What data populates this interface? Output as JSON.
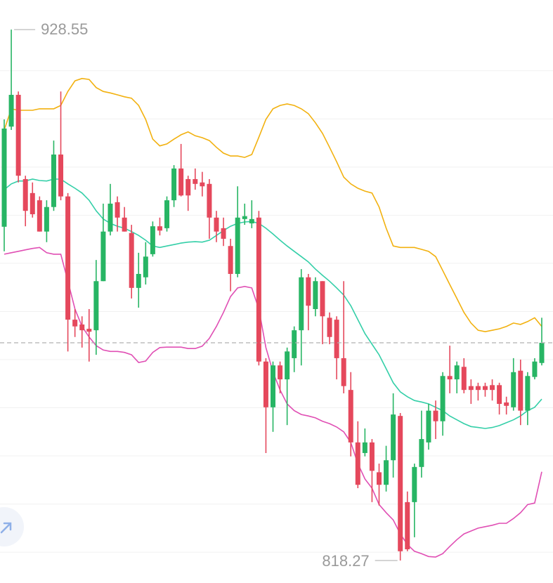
{
  "chart_data": {
    "type": "candlestick",
    "ylim": [
      813.6,
      934.7
    ],
    "yticks": [
      820,
      830,
      840,
      850,
      860,
      870,
      880,
      890,
      900,
      910,
      920
    ],
    "grid": true,
    "tick_labels": false,
    "price_line": true,
    "up_color": "#27b564",
    "down_color": "#e5485c",
    "high_label": "928.55",
    "low_label": "818.27",
    "open": [
      887.6,
      908.4,
      915.0,
      897.5,
      894.6,
      893.1,
      886.6,
      891.7,
      902.6,
      893.9,
      868.3,
      867.3,
      866.4,
      866.1,
      876.3,
      886.6,
      892.7,
      889.5,
      886.3,
      874.9,
      877.1,
      881.9,
      887.7,
      887.3,
      893.1,
      899.7,
      897.5,
      897.5,
      896.8,
      896.5,
      889.5,
      887.3,
      883.6,
      877.8,
      889.2,
      888.3,
      889.5,
      859.6,
      850.1,
      858.8,
      855.9,
      860.3,
      866.1,
      877.1,
      870.5,
      876.3,
      868.7,
      868.3,
      860.3,
      853.7,
      842.8,
      840.6,
      842.8,
      836.6,
      834.0,
      839.1,
      848.3,
      830.4,
      830.4,
      837.7,
      842.8,
      849.4,
      847.2,
      856.6,
      855.9,
      858.5,
      854.5,
      854.5,
      854.5,
      854.7,
      854.7,
      851.1,
      850.1,
      857.7,
      849.4,
      856.4,
      859.3
    ],
    "high": [
      909.9,
      928.55,
      915.7,
      898.2,
      896.8,
      893.9,
      893.1,
      905.5,
      915.7,
      894.6,
      870.5,
      869.0,
      870.5,
      880.7,
      892.4,
      896.5,
      893.9,
      891.7,
      888.0,
      882.2,
      884.4,
      888.7,
      889.5,
      893.9,
      900.4,
      904.8,
      898.2,
      899.7,
      899.0,
      897.5,
      890.9,
      889.5,
      885.1,
      896.0,
      892.4,
      893.1,
      890.9,
      860.3,
      859.6,
      859.6,
      862.5,
      866.9,
      878.8,
      877.8,
      877.1,
      876.3,
      869.8,
      869.0,
      876.3,
      857.4,
      847.2,
      845.7,
      843.5,
      838.4,
      842.1,
      853.0,
      848.9,
      832.6,
      838.4,
      849.4,
      850.8,
      851.5,
      857.4,
      862.9,
      859.6,
      860.3,
      855.9,
      855.2,
      855.2,
      855.9,
      855.2,
      852.3,
      860.3,
      860.0,
      857.4,
      860.3,
      868.7
    ],
    "low": [
      882.5,
      907.7,
      896.8,
      887.7,
      889.5,
      886.6,
      884.4,
      890.9,
      893.1,
      861.7,
      864.7,
      862.5,
      859.6,
      861.0,
      876.3,
      885.8,
      886.6,
      886.6,
      872.7,
      870.8,
      875.6,
      881.4,
      885.8,
      886.6,
      891.7,
      893.9,
      890.9,
      895.3,
      893.9,
      885.1,
      884.4,
      883.6,
      874.2,
      877.1,
      888.0,
      887.3,
      858.8,
      840.6,
      845.0,
      853.0,
      846.4,
      857.4,
      858.8,
      866.1,
      869.0,
      863.2,
      863.2,
      855.9,
      853.0,
      839.9,
      833.3,
      839.9,
      830.4,
      829.7,
      832.6,
      835.5,
      818.27,
      820.2,
      823.1,
      835.5,
      841.3,
      843.5,
      844.2,
      853.0,
      853.0,
      853.0,
      850.8,
      851.5,
      852.3,
      851.5,
      848.6,
      848.6,
      849.4,
      846.4,
      846.4,
      855.9,
      858.8
    ],
    "close": [
      908.0,
      915.0,
      898.2,
      890.9,
      890.2,
      886.6,
      891.7,
      902.6,
      893.9,
      868.3,
      866.9,
      866.1,
      865.8,
      876.3,
      886.6,
      892.4,
      889.5,
      886.6,
      874.9,
      877.8,
      881.4,
      887.7,
      886.8,
      893.1,
      899.7,
      894.1,
      894.1,
      896.5,
      896.0,
      889.5,
      886.6,
      885.1,
      877.8,
      889.5,
      889.8,
      889.2,
      859.6,
      850.1,
      858.8,
      855.9,
      861.7,
      866.1,
      877.1,
      871.2,
      876.3,
      869.0,
      864.7,
      860.3,
      854.5,
      842.8,
      834.0,
      842.8,
      836.9,
      834.0,
      839.1,
      848.6,
      820.2,
      820.6,
      837.7,
      843.5,
      849.4,
      847.2,
      856.6,
      855.9,
      858.8,
      853.7,
      853.7,
      853.7,
      853.7,
      853.7,
      850.8,
      850.4,
      857.4,
      849.4,
      856.6,
      859.6,
      863.5
    ],
    "bands": [
      {
        "color": "#f2b10f",
        "values": [
          907.7,
          912.1,
          911.8,
          911.8,
          911.8,
          912.1,
          912.1,
          912.1,
          912.8,
          915.7,
          917.9,
          918.4,
          918.2,
          916.5,
          915.7,
          915.4,
          915.0,
          914.6,
          914.3,
          912.8,
          909.9,
          905.8,
          904.4,
          904.8,
          905.8,
          906.7,
          907.3,
          906.5,
          906.1,
          905.5,
          904.1,
          902.9,
          902.3,
          902.3,
          902.0,
          902.6,
          906.2,
          909.9,
          912.1,
          912.8,
          913.1,
          912.8,
          912.1,
          911.1,
          909.2,
          907.0,
          904.1,
          901.1,
          897.9,
          896.5,
          895.6,
          895.0,
          894.6,
          891.7,
          887.3,
          883.6,
          883.3,
          883.3,
          883.3,
          882.9,
          882.5,
          881.4,
          878.5,
          875.6,
          872.7,
          869.8,
          867.6,
          866.1,
          865.8,
          866.1,
          866.4,
          866.9,
          867.6,
          867.3,
          867.9,
          868.7,
          866.9
        ]
      },
      {
        "color": "#34cfa8",
        "values": [
          895.3,
          896.5,
          897.1,
          897.1,
          897.5,
          897.2,
          897.1,
          897.5,
          897.5,
          896.5,
          895.6,
          894.6,
          893.1,
          890.9,
          889.2,
          888.3,
          887.7,
          887.3,
          886.6,
          885.8,
          884.8,
          883.6,
          883.3,
          883.6,
          883.9,
          884.2,
          884.4,
          884.5,
          884.4,
          884.8,
          885.8,
          886.8,
          887.7,
          888.3,
          888.6,
          888.7,
          888.3,
          887.3,
          886.1,
          884.8,
          883.6,
          882.5,
          881.4,
          880.3,
          878.8,
          877.5,
          876.3,
          874.9,
          873.4,
          871.2,
          868.3,
          865.4,
          863.2,
          861.0,
          858.1,
          855.2,
          853.3,
          852.3,
          851.5,
          851.2,
          850.8,
          850.1,
          849.4,
          848.3,
          847.5,
          846.7,
          846.1,
          845.9,
          845.7,
          845.9,
          846.3,
          846.9,
          847.5,
          848.3,
          849.4,
          850.1,
          851.8
        ]
      },
      {
        "color": "#e04fb4",
        "values": [
          881.9,
          882.2,
          882.5,
          882.8,
          883.1,
          883.3,
          882.2,
          881.9,
          881.9,
          876.3,
          870.5,
          866.9,
          864.7,
          862.9,
          862.0,
          861.7,
          861.7,
          861.5,
          861.0,
          859.4,
          859.7,
          861.5,
          862.5,
          862.6,
          862.6,
          862.6,
          862.3,
          862.3,
          862.8,
          864.4,
          866.9,
          869.8,
          873.1,
          874.9,
          875.2,
          874.9,
          870.5,
          862.5,
          857.4,
          853.7,
          850.8,
          849.4,
          848.6,
          848.3,
          847.9,
          847.2,
          846.7,
          846.0,
          845.0,
          842.8,
          838.4,
          835.2,
          833.3,
          829.9,
          828.2,
          826.7,
          823.8,
          821.6,
          820.2,
          819.7,
          819.1,
          819.0,
          819.7,
          821.2,
          822.6,
          823.8,
          824.4,
          825.0,
          825.3,
          825.6,
          826.0,
          826.0,
          827.0,
          828.2,
          829.9,
          830.2,
          836.7
        ]
      }
    ]
  }
}
